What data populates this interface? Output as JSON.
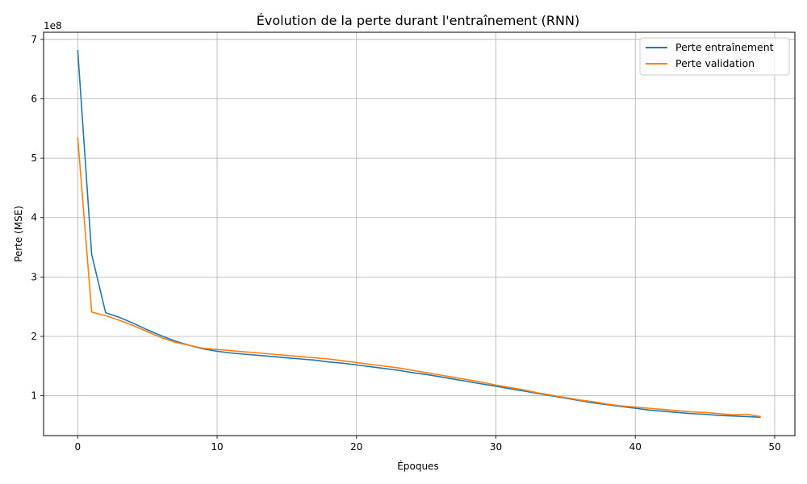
{
  "chart_data": {
    "type": "line",
    "title": "Évolution de la perte durant l'entraînement (RNN)",
    "xlabel": "Époques",
    "ylabel": "Perte (MSE)",
    "y_offset_label": "1e8",
    "xlim": [
      -2.45,
      51.45
    ],
    "ylim": [
      0.33,
      7.12
    ],
    "y_scale_factor": 100000000,
    "x_ticks": [
      0,
      10,
      20,
      30,
      40,
      50
    ],
    "x_tick_labels": [
      "0",
      "10",
      "20",
      "30",
      "40",
      "50"
    ],
    "y_ticks": [
      1,
      2,
      3,
      4,
      5,
      6,
      7
    ],
    "y_tick_labels": [
      "1",
      "2",
      "3",
      "4",
      "5",
      "6",
      "7"
    ],
    "grid": true,
    "legend_position": "top-right",
    "x": [
      0,
      1,
      2,
      3,
      4,
      5,
      6,
      7,
      8,
      9,
      10,
      11,
      12,
      13,
      14,
      15,
      16,
      17,
      18,
      19,
      20,
      21,
      22,
      23,
      24,
      25,
      26,
      27,
      28,
      29,
      30,
      31,
      32,
      33,
      34,
      35,
      36,
      37,
      38,
      39,
      40,
      41,
      42,
      43,
      44,
      45,
      46,
      47,
      48,
      49
    ],
    "series": [
      {
        "name": "Perte entraînement",
        "color": "#1f77b4",
        "values": [
          6.82,
          3.38,
          2.4,
          2.32,
          2.22,
          2.11,
          2.01,
          1.92,
          1.85,
          1.79,
          1.75,
          1.72,
          1.7,
          1.68,
          1.66,
          1.64,
          1.62,
          1.6,
          1.57,
          1.55,
          1.52,
          1.49,
          1.46,
          1.43,
          1.39,
          1.36,
          1.32,
          1.28,
          1.24,
          1.2,
          1.16,
          1.12,
          1.08,
          1.04,
          1.0,
          0.96,
          0.92,
          0.88,
          0.85,
          0.82,
          0.79,
          0.76,
          0.74,
          0.72,
          0.7,
          0.69,
          0.67,
          0.66,
          0.65,
          0.64
        ]
      },
      {
        "name": "Perte validation",
        "color": "#ff7f0e",
        "values": [
          5.35,
          2.41,
          2.35,
          2.27,
          2.18,
          2.08,
          1.98,
          1.9,
          1.85,
          1.8,
          1.78,
          1.76,
          1.74,
          1.72,
          1.7,
          1.68,
          1.66,
          1.64,
          1.62,
          1.59,
          1.56,
          1.53,
          1.5,
          1.47,
          1.43,
          1.39,
          1.35,
          1.31,
          1.27,
          1.23,
          1.18,
          1.14,
          1.1,
          1.05,
          1.01,
          0.97,
          0.93,
          0.9,
          0.86,
          0.83,
          0.81,
          0.79,
          0.77,
          0.75,
          0.73,
          0.72,
          0.7,
          0.68,
          0.69,
          0.65
        ]
      }
    ]
  }
}
